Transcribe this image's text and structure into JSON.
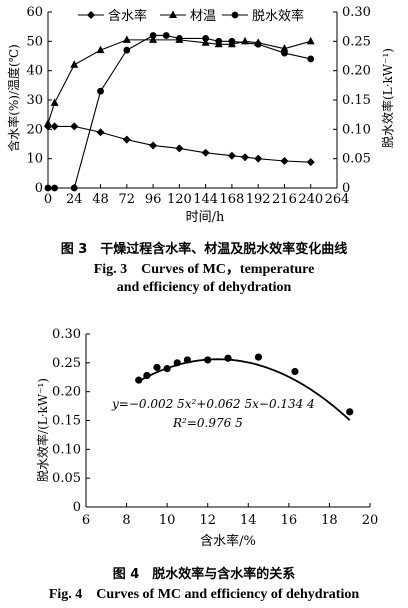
{
  "chart_data": [
    {
      "type": "line",
      "x": [
        0,
        6,
        24,
        48,
        72,
        96,
        108,
        120,
        144,
        156,
        168,
        180,
        192,
        216,
        240
      ],
      "xlabel": "时间/h",
      "xticks": [
        0,
        24,
        48,
        72,
        96,
        120,
        144,
        168,
        192,
        216,
        240,
        264
      ],
      "xlim": [
        0,
        264
      ],
      "ylabel": "含水率(%)/温度(℃)",
      "ylim": [
        0,
        60
      ],
      "yticks": [
        0,
        10,
        20,
        30,
        40,
        50,
        60
      ],
      "y2label": "脱水效率(L·kW⁻¹)",
      "y2lim": [
        0,
        0.3
      ],
      "y2ticks": [
        "0",
        "0.05",
        "0.10",
        "0.15",
        "0.20",
        "0.25",
        "0.30"
      ],
      "legend_position": "top-center",
      "series": [
        {
          "name": "含水率",
          "axis": "left",
          "marker": "diamond",
          "values": [
            21,
            21,
            21,
            19,
            16.5,
            14.5,
            null,
            13.5,
            12,
            null,
            11,
            10.5,
            10,
            9.2,
            8.8
          ]
        },
        {
          "name": "材温",
          "axis": "left",
          "marker": "triangle",
          "values": [
            22,
            29,
            42,
            47,
            50.5,
            50.5,
            null,
            50.5,
            49.5,
            49,
            49,
            50,
            49.5,
            47.5,
            50
          ]
        },
        {
          "name": "脱水效率",
          "axis": "right",
          "marker": "circle",
          "values": [
            0,
            0,
            0,
            0.165,
            0.235,
            0.26,
            0.26,
            0.255,
            0.255,
            0.25,
            0.25,
            null,
            0.245,
            0.23,
            0.22
          ]
        }
      ]
    },
    {
      "type": "scatter",
      "x": [
        8.6,
        9.0,
        9.5,
        10.0,
        10.5,
        11.0,
        12.0,
        13.0,
        14.5,
        16.3,
        19.0
      ],
      "values": [
        0.22,
        0.228,
        0.242,
        0.24,
        0.25,
        0.255,
        0.255,
        0.258,
        0.26,
        0.235,
        0.165
      ],
      "fit": {
        "a": -0.0025,
        "b": 0.0625,
        "c": -0.1344
      },
      "equation": "y=−0.002 5x²+0.062 5x−0.134 4",
      "r2": "R²=0.976 5",
      "xlabel": "含水率/%",
      "xlim": [
        6,
        20
      ],
      "xticks": [
        6,
        8,
        10,
        12,
        14,
        16,
        18,
        20
      ],
      "ylabel": "脱水效率/(L·kW⁻¹)",
      "ylim": [
        0,
        0.3
      ],
      "yticks": [
        "0",
        "0.05",
        "0.10",
        "0.15",
        "0.20",
        "0.25",
        "0.30"
      ]
    }
  ],
  "captions": {
    "fig3_cn": "图 3　干燥过程含水率、材温及脱水效率变化曲线",
    "fig3_en_line1": "Fig. 3　Curves of MC，temperature",
    "fig3_en_line2": "and efficiency of dehydration",
    "fig4_cn": "图 4　脱水效率与含水率的关系",
    "fig4_en": "Fig. 4　Curves of MC and efficiency of dehydration"
  }
}
